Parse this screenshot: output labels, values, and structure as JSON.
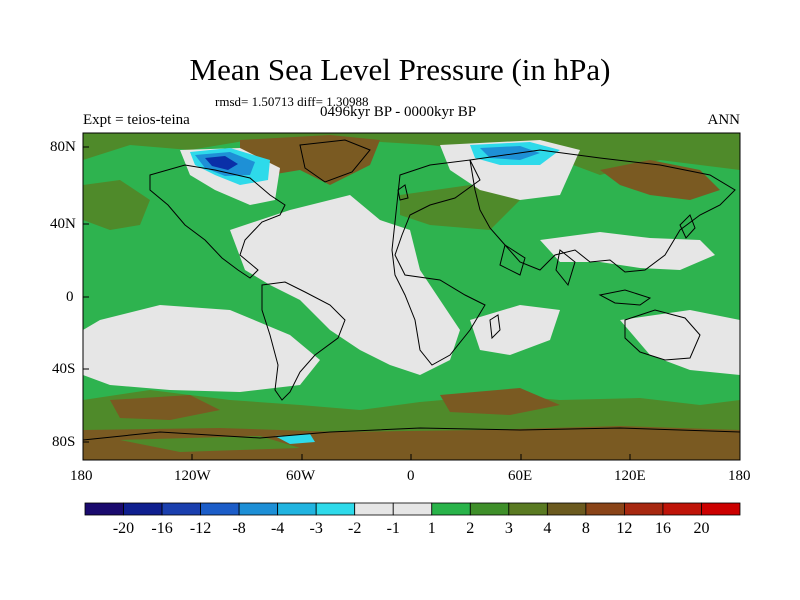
{
  "title": "Mean Sea Level Pressure (in hPa)",
  "stats": "rmsd= 1.50713  diff= 1.30988",
  "period": "0496kyr BP - 0000kyr BP",
  "experiment": "Expt = teios-teina",
  "season": "ANN",
  "lat_ticks": [
    "80N",
    "40N",
    "0",
    "40S",
    "80S"
  ],
  "lon_ticks": [
    "180",
    "120W",
    "60W",
    "0",
    "60E",
    "120E",
    "180"
  ],
  "colorbar": {
    "labels": [
      "-20",
      "-16",
      "-12",
      "-8",
      "-4",
      "-3",
      "-2",
      "-1",
      "1",
      "2",
      "3",
      "4",
      "8",
      "12",
      "16",
      "20"
    ],
    "colors": [
      "#1a0a6e",
      "#0f1f8f",
      "#1a3fae",
      "#1c5dc8",
      "#1d8fd6",
      "#21b4e0",
      "#2edaea",
      "#e6e6e6",
      "#e6e6e6",
      "#29b34a",
      "#3f8f2a",
      "#5a7a22",
      "#6b5a1f",
      "#8a4418",
      "#a72810",
      "#bf1409",
      "#cc0000"
    ],
    "colors_note": ""
  },
  "map_colors": {
    "neutral": "#e6e6e6",
    "green": "#2eb34f",
    "olive": "#4f8a2a",
    "brown": "#7a5a22",
    "blue": "#1e90d6",
    "cyan": "#2edaea",
    "darkblue": "#0a2fa8"
  }
}
